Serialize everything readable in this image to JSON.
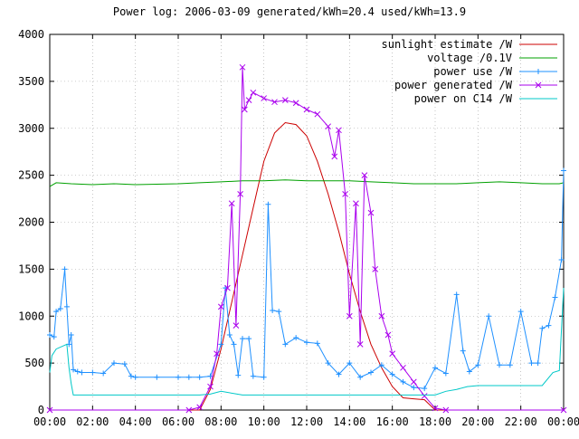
{
  "chart_data": {
    "type": "line",
    "title": "Power log: 2006-03-09 generated/kWh=20.4 used/kWh=13.9",
    "xlabel": "",
    "ylabel": "",
    "xlim": [
      0,
      24
    ],
    "ylim": [
      0,
      4000
    ],
    "x_ticks": [
      "00:00",
      "02:00",
      "04:00",
      "06:00",
      "08:00",
      "10:00",
      "12:00",
      "14:00",
      "16:00",
      "18:00",
      "20:00",
      "22:00",
      "00:00"
    ],
    "y_ticks": [
      "0",
      "500",
      "1000",
      "1500",
      "2000",
      "2500",
      "3000",
      "3500",
      "4000"
    ],
    "grid": true,
    "legend_position": "top-right",
    "series": [
      {
        "name": "sunlight estimate /W",
        "color": "#cc0000",
        "marker": "none",
        "points": [
          [
            0,
            0
          ],
          [
            7.0,
            0
          ],
          [
            7.5,
            220
          ],
          [
            8.0,
            650
          ],
          [
            8.5,
            1150
          ],
          [
            9.0,
            1650
          ],
          [
            9.5,
            2150
          ],
          [
            10.0,
            2650
          ],
          [
            10.5,
            2950
          ],
          [
            11.0,
            3060
          ],
          [
            11.5,
            3040
          ],
          [
            12.0,
            2920
          ],
          [
            12.5,
            2650
          ],
          [
            13.0,
            2300
          ],
          [
            13.5,
            1900
          ],
          [
            14.0,
            1450
          ],
          [
            14.5,
            1050
          ],
          [
            15.0,
            700
          ],
          [
            15.5,
            450
          ],
          [
            16.0,
            250
          ],
          [
            16.5,
            130
          ],
          [
            17.0,
            120
          ],
          [
            17.5,
            110
          ],
          [
            18.0,
            0
          ],
          [
            24,
            0
          ]
        ]
      },
      {
        "name": "voltage /0.1V",
        "color": "#00a000",
        "marker": "none",
        "points": [
          [
            0,
            2380
          ],
          [
            0.3,
            2420
          ],
          [
            1,
            2410
          ],
          [
            2,
            2400
          ],
          [
            3,
            2410
          ],
          [
            4,
            2400
          ],
          [
            5,
            2405
          ],
          [
            6,
            2410
          ],
          [
            7,
            2420
          ],
          [
            8,
            2430
          ],
          [
            9,
            2440
          ],
          [
            10,
            2440
          ],
          [
            11,
            2450
          ],
          [
            12,
            2440
          ],
          [
            13,
            2440
          ],
          [
            14,
            2440
          ],
          [
            15,
            2430
          ],
          [
            16,
            2420
          ],
          [
            17,
            2410
          ],
          [
            18,
            2410
          ],
          [
            19,
            2410
          ],
          [
            20,
            2420
          ],
          [
            21,
            2430
          ],
          [
            22,
            2420
          ],
          [
            23,
            2410
          ],
          [
            23.8,
            2410
          ],
          [
            24,
            2420
          ]
        ]
      },
      {
        "name": "power use /W",
        "color": "#1e90ff",
        "marker": "plus",
        "points": [
          [
            0,
            800
          ],
          [
            0.2,
            780
          ],
          [
            0.3,
            1050
          ],
          [
            0.5,
            1080
          ],
          [
            0.7,
            1500
          ],
          [
            0.8,
            1100
          ],
          [
            0.9,
            700
          ],
          [
            1.0,
            800
          ],
          [
            1.1,
            430
          ],
          [
            1.3,
            410
          ],
          [
            1.5,
            400
          ],
          [
            2.0,
            400
          ],
          [
            2.5,
            390
          ],
          [
            3.0,
            500
          ],
          [
            3.5,
            490
          ],
          [
            3.8,
            360
          ],
          [
            4.0,
            350
          ],
          [
            5.0,
            350
          ],
          [
            6.0,
            350
          ],
          [
            6.5,
            350
          ],
          [
            7.0,
            350
          ],
          [
            7.5,
            360
          ],
          [
            8.0,
            700
          ],
          [
            8.2,
            1300
          ],
          [
            8.4,
            800
          ],
          [
            8.6,
            700
          ],
          [
            8.8,
            370
          ],
          [
            9.0,
            760
          ],
          [
            9.3,
            760
          ],
          [
            9.5,
            360
          ],
          [
            10.0,
            350
          ],
          [
            10.2,
            2190
          ],
          [
            10.4,
            1060
          ],
          [
            10.7,
            1050
          ],
          [
            11.0,
            700
          ],
          [
            11.5,
            770
          ],
          [
            12.0,
            720
          ],
          [
            12.5,
            710
          ],
          [
            13.0,
            500
          ],
          [
            13.5,
            380
          ],
          [
            14.0,
            500
          ],
          [
            14.5,
            350
          ],
          [
            15.0,
            400
          ],
          [
            15.5,
            480
          ],
          [
            16.0,
            380
          ],
          [
            16.5,
            300
          ],
          [
            17.0,
            240
          ],
          [
            17.5,
            230
          ],
          [
            18.0,
            450
          ],
          [
            18.5,
            390
          ],
          [
            19.0,
            1230
          ],
          [
            19.3,
            630
          ],
          [
            19.6,
            410
          ],
          [
            20.0,
            480
          ],
          [
            20.5,
            1000
          ],
          [
            21.0,
            480
          ],
          [
            21.5,
            480
          ],
          [
            22.0,
            1050
          ],
          [
            22.5,
            500
          ],
          [
            22.8,
            500
          ],
          [
            23.0,
            870
          ],
          [
            23.3,
            900
          ],
          [
            23.6,
            1200
          ],
          [
            23.9,
            1600
          ],
          [
            24.0,
            2550
          ]
        ]
      },
      {
        "name": "power generated /W",
        "color": "#aa00ee",
        "marker": "cross",
        "points": [
          [
            0,
            0
          ],
          [
            6.5,
            0
          ],
          [
            7.0,
            30
          ],
          [
            7.5,
            250
          ],
          [
            7.8,
            600
          ],
          [
            8.0,
            1100
          ],
          [
            8.3,
            1300
          ],
          [
            8.5,
            2200
          ],
          [
            8.7,
            900
          ],
          [
            8.9,
            2300
          ],
          [
            9.0,
            3650
          ],
          [
            9.1,
            3200
          ],
          [
            9.3,
            3300
          ],
          [
            9.5,
            3380
          ],
          [
            10.0,
            3320
          ],
          [
            10.5,
            3280
          ],
          [
            11.0,
            3300
          ],
          [
            11.5,
            3270
          ],
          [
            12.0,
            3200
          ],
          [
            12.5,
            3150
          ],
          [
            13.0,
            3020
          ],
          [
            13.3,
            2700
          ],
          [
            13.5,
            2980
          ],
          [
            13.8,
            2300
          ],
          [
            14.0,
            1000
          ],
          [
            14.3,
            2200
          ],
          [
            14.5,
            700
          ],
          [
            14.7,
            2500
          ],
          [
            15.0,
            2100
          ],
          [
            15.2,
            1500
          ],
          [
            15.5,
            1000
          ],
          [
            15.8,
            800
          ],
          [
            16.0,
            600
          ],
          [
            16.5,
            450
          ],
          [
            17.0,
            300
          ],
          [
            17.5,
            150
          ],
          [
            18.0,
            20
          ],
          [
            18.5,
            0
          ],
          [
            24,
            0
          ]
        ]
      },
      {
        "name": "power on C14 /W",
        "color": "#00c8c8",
        "marker": "none",
        "points": [
          [
            0,
            400
          ],
          [
            0.1,
            580
          ],
          [
            0.3,
            650
          ],
          [
            0.6,
            680
          ],
          [
            0.8,
            700
          ],
          [
            0.9,
            450
          ],
          [
            1.0,
            280
          ],
          [
            1.1,
            160
          ],
          [
            2.0,
            160
          ],
          [
            3.0,
            160
          ],
          [
            4.0,
            160
          ],
          [
            5.0,
            160
          ],
          [
            6.0,
            160
          ],
          [
            7.0,
            160
          ],
          [
            7.5,
            170
          ],
          [
            8.0,
            200
          ],
          [
            9.0,
            160
          ],
          [
            10.0,
            160
          ],
          [
            11.0,
            160
          ],
          [
            12.0,
            160
          ],
          [
            13.0,
            160
          ],
          [
            14.0,
            160
          ],
          [
            15.0,
            160
          ],
          [
            16.0,
            160
          ],
          [
            17.0,
            160
          ],
          [
            18.0,
            160
          ],
          [
            18.5,
            200
          ],
          [
            19.0,
            220
          ],
          [
            19.5,
            250
          ],
          [
            20.0,
            260
          ],
          [
            21.0,
            260
          ],
          [
            22.0,
            260
          ],
          [
            23.0,
            260
          ],
          [
            23.5,
            400
          ],
          [
            23.8,
            420
          ],
          [
            24.0,
            1300
          ]
        ]
      }
    ]
  }
}
